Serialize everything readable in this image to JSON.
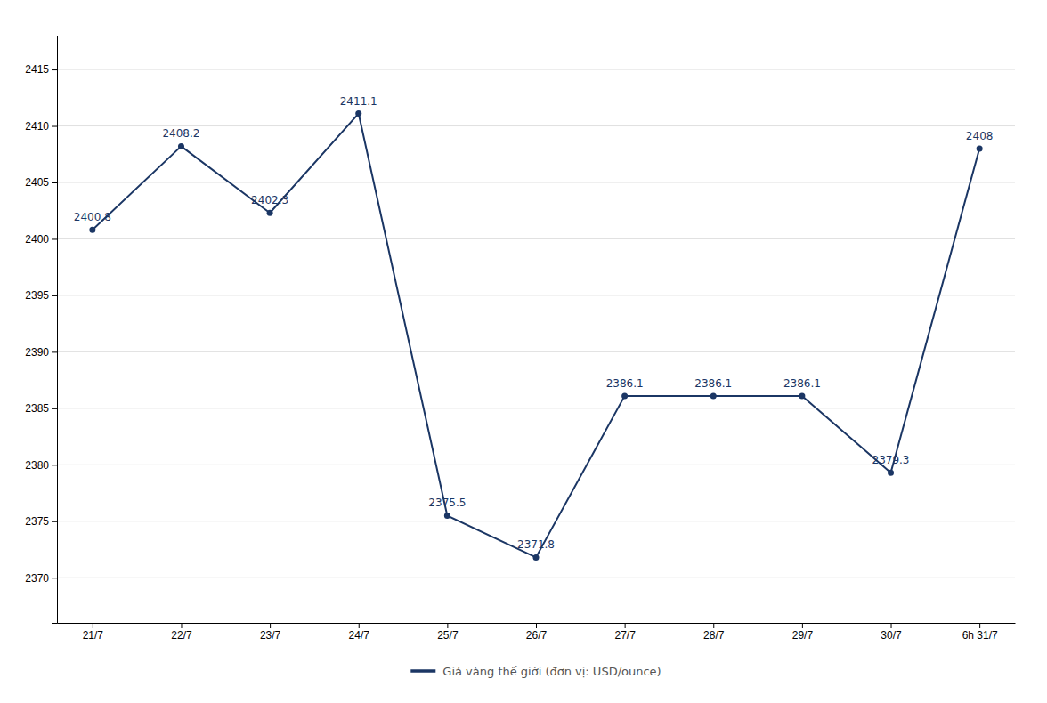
{
  "chart_data": {
    "type": "line",
    "categories": [
      "21/7",
      "22/7",
      "23/7",
      "24/7",
      "25/7",
      "26/7",
      "27/7",
      "28/7",
      "29/7",
      "30/7",
      "6h 31/7"
    ],
    "series": [
      {
        "name": "Giá vàng thế giới (đơn vị: USD/ounce)",
        "color": "#1b3664",
        "values": [
          2400.8,
          2408.2,
          2402.3,
          2411.1,
          2375.5,
          2371.8,
          2386.1,
          2386.1,
          2386.1,
          2379.3,
          2408
        ]
      }
    ],
    "ylim": [
      2366,
      2418
    ],
    "yticks": [
      2370,
      2375,
      2380,
      2385,
      2390,
      2395,
      2400,
      2405,
      2410,
      2415
    ],
    "grid": true,
    "legend": "bottom",
    "data_labels": true,
    "marker": "circle"
  }
}
